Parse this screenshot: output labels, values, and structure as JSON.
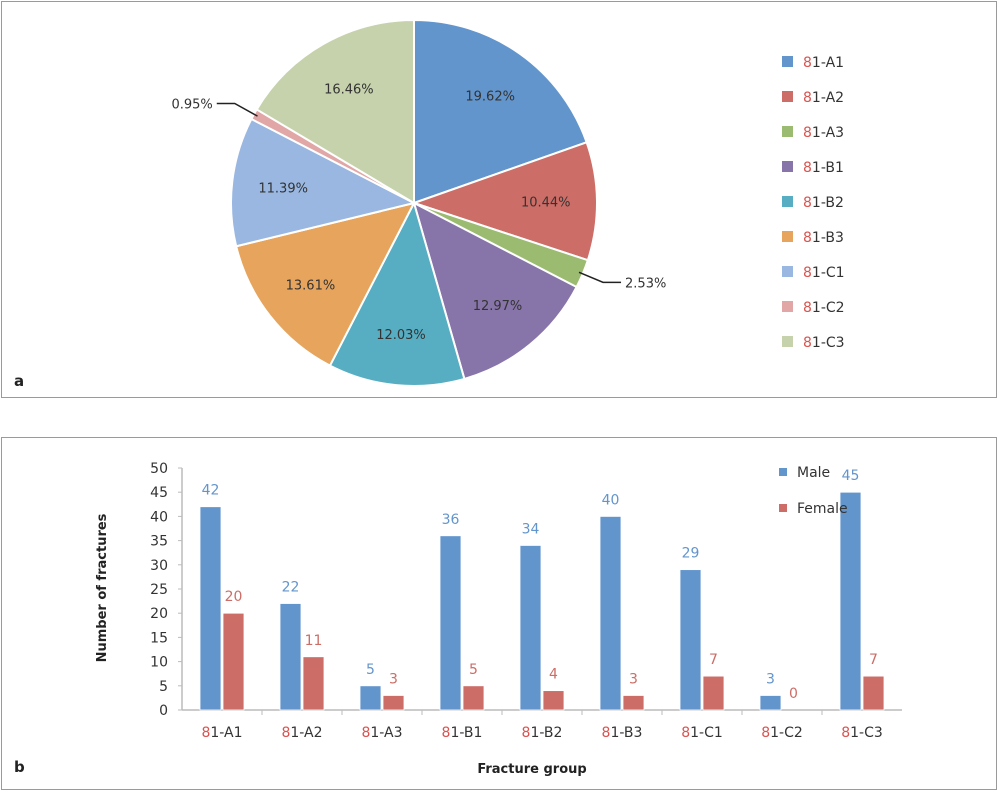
{
  "chart_data": [
    {
      "type": "pie",
      "panel_label": "a",
      "categories": [
        "81-A1",
        "81-A2",
        "81-A3",
        "81-B1",
        "81-B2",
        "81-B3",
        "81-C1",
        "81-C2",
        "81-C3"
      ],
      "values": [
        19.62,
        10.44,
        2.53,
        12.97,
        12.03,
        13.61,
        11.39,
        0.95,
        16.46
      ],
      "data_labels": [
        "19.62%",
        "10.44%",
        "2.53%",
        "12.97%",
        "12.03%",
        "13.61%",
        "11.39%",
        "0.95%",
        "16.46%"
      ],
      "colors": [
        "#6395cd",
        "#cd6d67",
        "#9bbb70",
        "#8775a9",
        "#57aec3",
        "#e6a45d",
        "#99b7e1",
        "#e1a6a6",
        "#c5d2ab"
      ],
      "legend": "right",
      "label_prefix_color": "#d9534f"
    },
    {
      "type": "bar",
      "panel_label": "b",
      "categories": [
        "81-A1",
        "81-A2",
        "81-A3",
        "81-B1",
        "81-B2",
        "81-B3",
        "81-C1",
        "81-C2",
        "81-C3"
      ],
      "series": [
        {
          "name": "Male",
          "values": [
            42,
            22,
            5,
            36,
            34,
            40,
            29,
            3,
            45
          ],
          "color": "#6395cd"
        },
        {
          "name": "Female",
          "values": [
            20,
            11,
            3,
            5,
            4,
            3,
            7,
            0,
            7
          ],
          "color": "#cd6d67"
        }
      ],
      "xlabel": "Fracture group",
      "ylabel": "Number of fractures",
      "ylim": [
        0,
        50
      ],
      "yticks": [
        0,
        5,
        10,
        15,
        20,
        25,
        30,
        35,
        40,
        45,
        50
      ],
      "legend": "top-right",
      "grid": false
    }
  ]
}
